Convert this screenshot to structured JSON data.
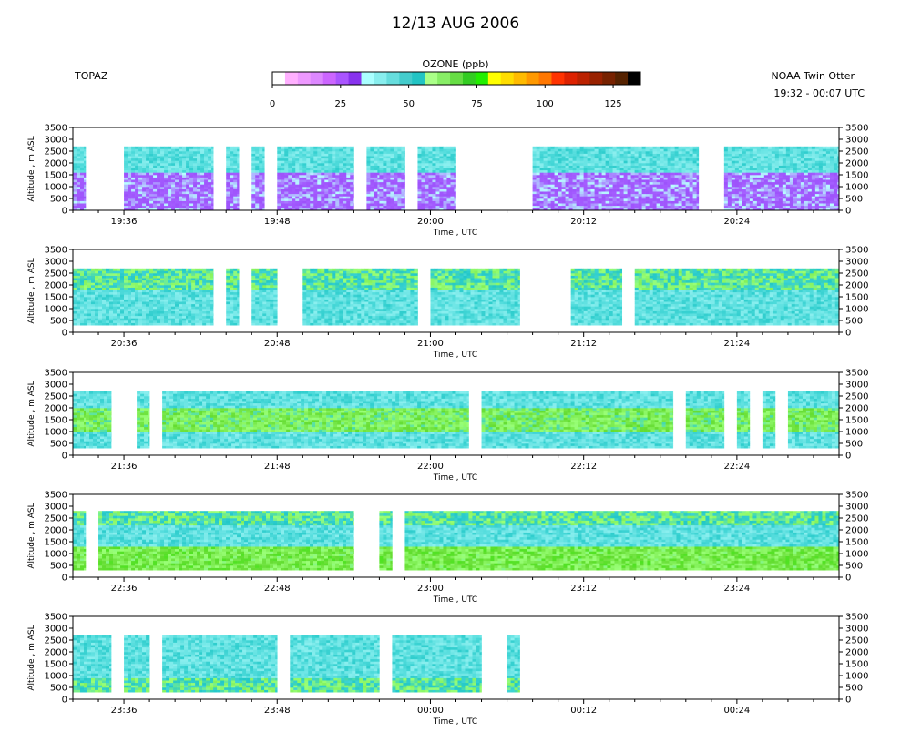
{
  "header": {
    "title": "12/13 AUG 2006",
    "instrument": "TOPAZ",
    "aircraft": "NOAA Twin Otter",
    "time_range": "19:32 - 00:07 UTC"
  },
  "colorbar": {
    "label": "OZONE (ppb)",
    "tick_labels": [
      "0",
      "25",
      "50",
      "75",
      "100",
      "125"
    ],
    "tick_values": [
      0,
      25,
      50,
      75,
      100,
      125
    ],
    "range": [
      0,
      135
    ],
    "colors": [
      "#ffffff",
      "#ffb0ff",
      "#ee99ff",
      "#dd88ff",
      "#cc66ff",
      "#aa55ff",
      "#8833ee",
      "#aaffff",
      "#88eeee",
      "#66dddd",
      "#44cccc",
      "#22c4c4",
      "#aaff88",
      "#88ee66",
      "#66dd44",
      "#33cc22",
      "#22ee00",
      "#ffff00",
      "#ffdd00",
      "#ffbb00",
      "#ff9900",
      "#ff7700",
      "#ff3300",
      "#dd2200",
      "#bb2200",
      "#992200",
      "#772200",
      "#552200",
      "#000000"
    ]
  },
  "chart_data": [
    {
      "type": "heatmap",
      "variable": "OZONE (ppb)",
      "xlabel": "Time , UTC",
      "ylabel": "Altitude , m ASL",
      "ylim": [
        0,
        3500
      ],
      "yticks": [
        0,
        500,
        1000,
        1500,
        2000,
        2500,
        3000,
        3500
      ],
      "xlim_utc": [
        "19:32",
        "20:32"
      ],
      "xtick_labels": [
        "19:36",
        "19:48",
        "20:00",
        "20:12",
        "20:24"
      ],
      "data_coverage_utc": [
        [
          "19:32",
          "19:33"
        ],
        [
          "19:36",
          "19:43"
        ],
        [
          "19:44",
          "19:45"
        ],
        [
          "19:46",
          "19:47"
        ],
        [
          "19:48",
          "19:54"
        ],
        [
          "19:55",
          "19:56"
        ],
        [
          "19:56",
          "19:58"
        ],
        [
          "19:59",
          "20:02"
        ],
        [
          "20:08",
          "20:21"
        ],
        [
          "20:23",
          "20:31"
        ],
        [
          "20:31",
          "20:32"
        ]
      ],
      "vertical_layers": [
        {
          "altitude_m": [
            0,
            1600
          ],
          "ozone_ppb": "15-25"
        },
        {
          "altitude_m": [
            1600,
            2700
          ],
          "ozone_ppb": "35-50"
        }
      ]
    },
    {
      "type": "heatmap",
      "variable": "OZONE (ppb)",
      "xlabel": "Time , UTC",
      "ylabel": "Altitude , m ASL",
      "ylim": [
        0,
        3500
      ],
      "yticks": [
        0,
        500,
        1000,
        1500,
        2000,
        2500,
        3000,
        3500
      ],
      "xlim_utc": [
        "20:32",
        "21:32"
      ],
      "xtick_labels": [
        "20:36",
        "20:48",
        "21:00",
        "21:12",
        "21:24"
      ],
      "data_coverage_utc": [
        [
          "20:32",
          "20:41"
        ],
        [
          "20:41",
          "20:43"
        ],
        [
          "20:44",
          "20:45"
        ],
        [
          "20:46",
          "20:48"
        ],
        [
          "20:50",
          "20:57"
        ],
        [
          "20:57",
          "20:59"
        ],
        [
          "21:00",
          "21:06"
        ],
        [
          "21:06",
          "21:07"
        ],
        [
          "21:11",
          "21:12"
        ],
        [
          "21:12",
          "21:14"
        ],
        [
          "21:14",
          "21:15"
        ],
        [
          "21:16",
          "21:32"
        ]
      ],
      "vertical_layers": [
        {
          "altitude_m": [
            300,
            1800
          ],
          "ozone_ppb": "35-50"
        },
        {
          "altitude_m": [
            1800,
            2700
          ],
          "ozone_ppb": "45-60"
        }
      ]
    },
    {
      "type": "heatmap",
      "variable": "OZONE (ppb)",
      "xlabel": "Time , UTC",
      "ylabel": "Altitude , m ASL",
      "ylim": [
        0,
        3500
      ],
      "yticks": [
        0,
        500,
        1000,
        1500,
        2000,
        2500,
        3000,
        3500
      ],
      "xlim_utc": [
        "21:32",
        "22:32"
      ],
      "xtick_labels": [
        "21:36",
        "21:48",
        "22:00",
        "22:12",
        "22:24"
      ],
      "data_coverage_utc": [
        [
          "21:32",
          "21:33"
        ],
        [
          "21:33",
          "21:35"
        ],
        [
          "21:37",
          "21:38"
        ],
        [
          "21:39",
          "22:00"
        ],
        [
          "22:00",
          "22:03"
        ],
        [
          "22:04",
          "22:09"
        ],
        [
          "22:09",
          "22:19"
        ],
        [
          "22:20",
          "22:23"
        ],
        [
          "22:24",
          "22:25"
        ],
        [
          "22:26",
          "22:27"
        ],
        [
          "22:28",
          "22:32"
        ]
      ],
      "vertical_layers": [
        {
          "altitude_m": [
            300,
            1000
          ],
          "ozone_ppb": "35-50"
        },
        {
          "altitude_m": [
            1000,
            2000
          ],
          "ozone_ppb": "50-65"
        },
        {
          "altitude_m": [
            2000,
            2700
          ],
          "ozone_ppb": "35-50"
        }
      ]
    },
    {
      "type": "heatmap",
      "variable": "OZONE (ppb)",
      "xlabel": "Time , UTC",
      "ylabel": "Altitude , m ASL",
      "ylim": [
        0,
        3500
      ],
      "yticks": [
        0,
        500,
        1000,
        1500,
        2000,
        2500,
        3000,
        3500
      ],
      "xlim_utc": [
        "22:32",
        "23:32"
      ],
      "xtick_labels": [
        "22:36",
        "22:48",
        "23:00",
        "23:12",
        "23:24"
      ],
      "data_coverage_utc": [
        [
          "22:32",
          "22:33"
        ],
        [
          "22:34",
          "22:54"
        ],
        [
          "22:56",
          "22:57"
        ],
        [
          "22:58",
          "22:59"
        ],
        [
          "22:59",
          "23:32"
        ]
      ],
      "vertical_layers": [
        {
          "altitude_m": [
            300,
            1300
          ],
          "ozone_ppb": "50-70"
        },
        {
          "altitude_m": [
            1300,
            2200
          ],
          "ozone_ppb": "35-50"
        },
        {
          "altitude_m": [
            2200,
            2800
          ],
          "ozone_ppb": "45-60"
        }
      ]
    },
    {
      "type": "heatmap",
      "variable": "OZONE (ppb)",
      "xlabel": "Time , UTC",
      "ylabel": "Altitude , m ASL",
      "ylim": [
        0,
        3500
      ],
      "yticks": [
        0,
        500,
        1000,
        1500,
        2000,
        2500,
        3000,
        3500
      ],
      "xlim_utc": [
        "23:32",
        "00:32"
      ],
      "xtick_labels": [
        "23:36",
        "23:48",
        "00:00",
        "00:12",
        "00:24"
      ],
      "data_coverage_utc": [
        [
          "23:32",
          "23:35"
        ],
        [
          "23:36",
          "23:38"
        ],
        [
          "23:39",
          "23:48"
        ],
        [
          "23:49",
          "23:56"
        ],
        [
          "23:57",
          "23:59"
        ],
        [
          "23:59",
          "00:01"
        ],
        [
          "00:01",
          "00:04"
        ],
        [
          "00:06",
          "00:07"
        ]
      ],
      "vertical_layers": [
        {
          "altitude_m": [
            300,
            900
          ],
          "ozone_ppb": "45-60"
        },
        {
          "altitude_m": [
            900,
            2700
          ],
          "ozone_ppb": "35-50"
        }
      ]
    }
  ]
}
